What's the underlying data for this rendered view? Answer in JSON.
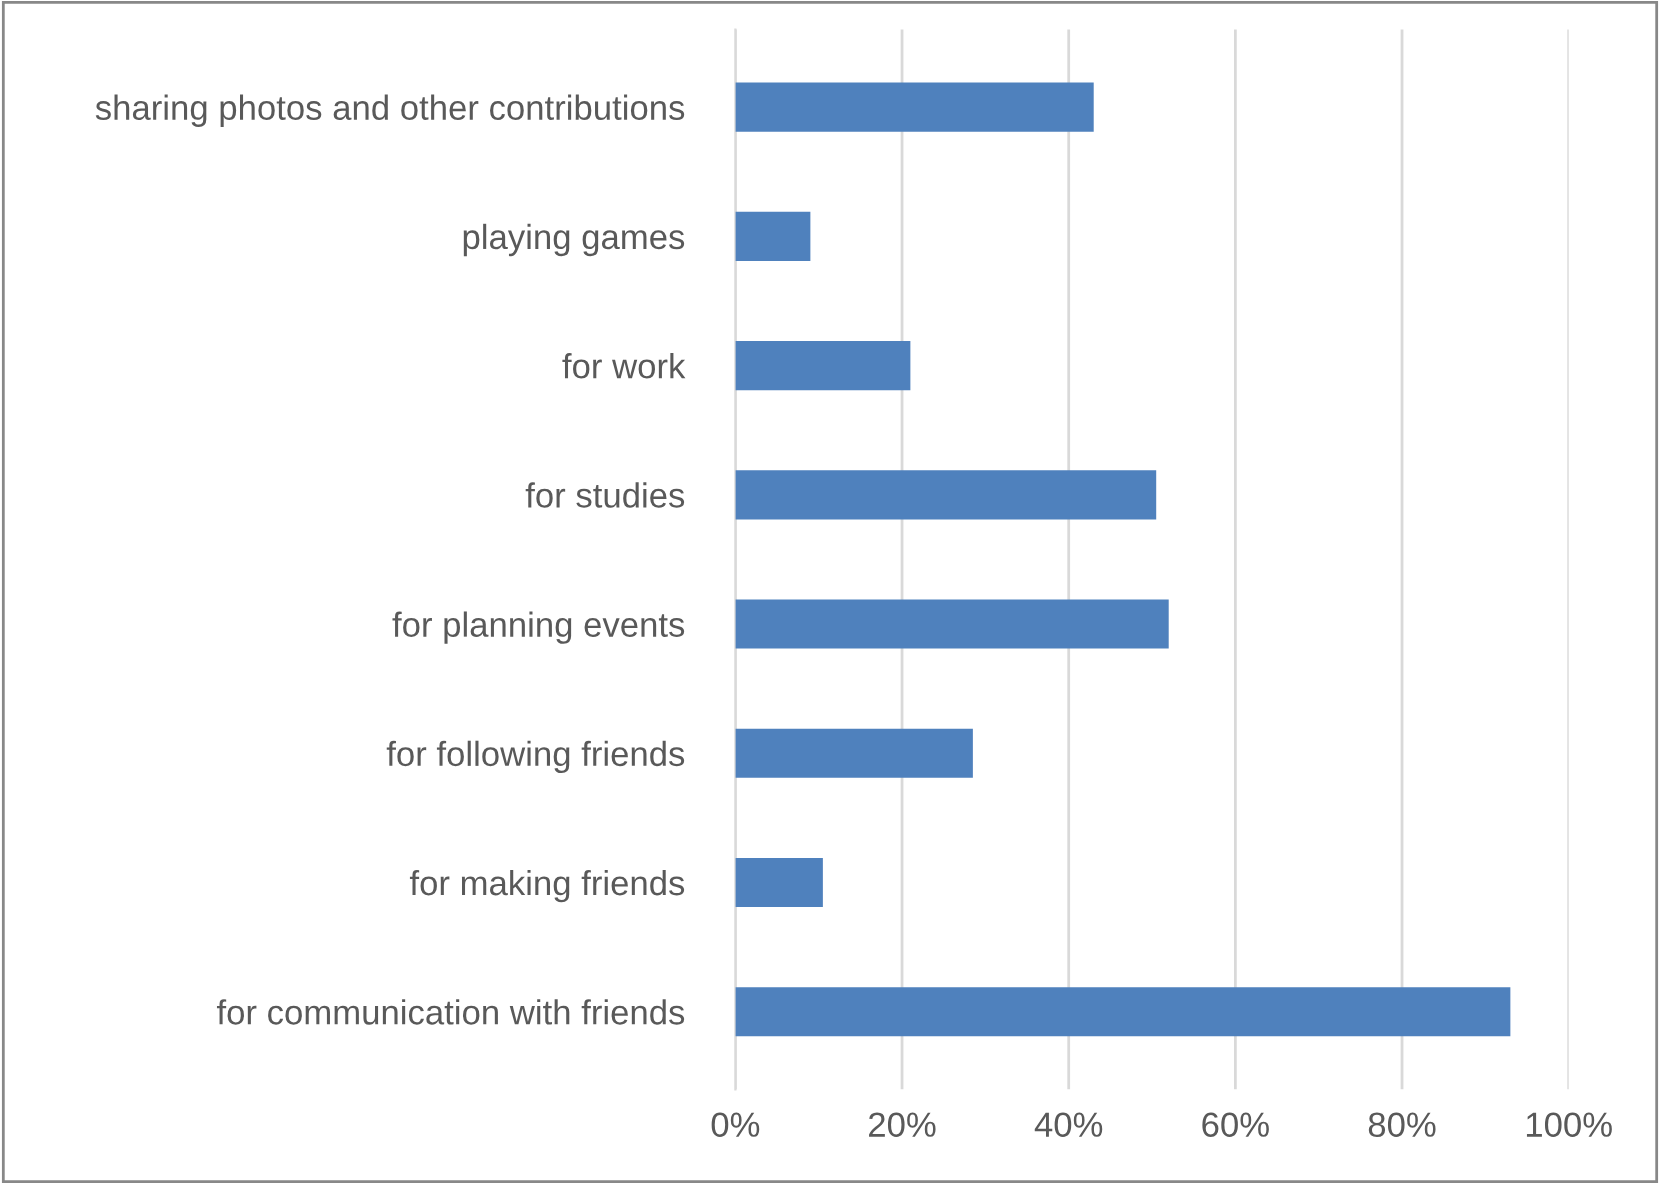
{
  "chart_data": {
    "type": "bar",
    "orientation": "horizontal",
    "categories": [
      "sharing photos and other contributions",
      "playing games",
      "for work",
      "for studies",
      "for planning events",
      "for following friends",
      "for making friends",
      "for communication with friends"
    ],
    "values": [
      43,
      9,
      21,
      50.5,
      52,
      28.5,
      10.5,
      93
    ],
    "color": "#4f81bd",
    "xlim": [
      0,
      100
    ],
    "xticks": [
      {
        "value": 0,
        "label": "0%"
      },
      {
        "value": 20,
        "label": "20%"
      },
      {
        "value": 40,
        "label": "40%"
      },
      {
        "value": 60,
        "label": "60%"
      },
      {
        "value": 80,
        "label": "80%"
      },
      {
        "value": 100,
        "label": "100%"
      }
    ],
    "grid": "x",
    "legend": false
  }
}
